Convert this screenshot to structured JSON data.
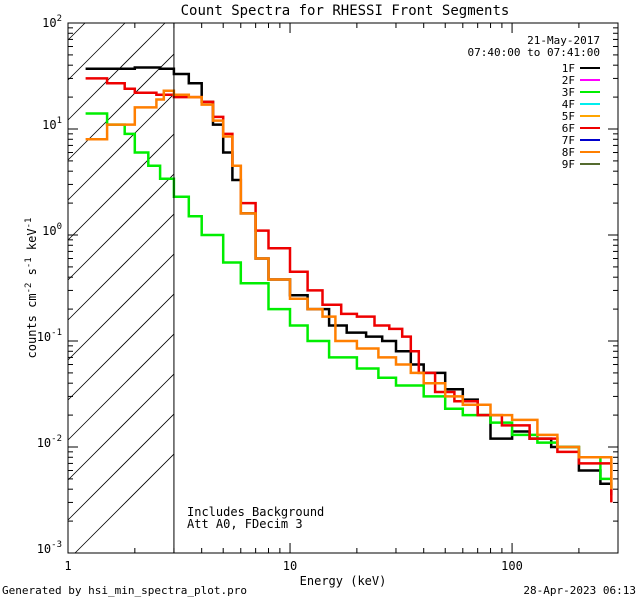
{
  "chart_data": {
    "type": "line",
    "title": "Count Spectra for RHESSI Front Segments",
    "xlabel": "Energy (keV)",
    "ylabel_parts": {
      "a": "counts cm",
      "exp1": "-2",
      "b": " s",
      "exp2": "-1",
      "c": " keV",
      "exp3": "-1"
    },
    "x_scale": "log",
    "y_scale": "log",
    "xlim": [
      1,
      300
    ],
    "ylim": [
      0.001,
      100
    ],
    "x_tick_labels": [
      "1",
      "10",
      "100"
    ],
    "y_tick_labels": [
      {
        "base": "10",
        "exp": "-3"
      },
      {
        "base": "10",
        "exp": "-2"
      },
      {
        "base": "10",
        "exp": "-1"
      },
      {
        "base": "10",
        "exp": "0"
      },
      {
        "base": "10",
        "exp": "1"
      },
      {
        "base": "10",
        "exp": "2"
      }
    ],
    "date": "21-May-2017",
    "time_range": "07:40:00 to 07:41:00",
    "annotations": [
      "Includes Background",
      "Att A0, FDecim 3"
    ],
    "excluded_region_xmax_kev": 3,
    "legend": [
      {
        "name": "1F",
        "color": "#000000"
      },
      {
        "name": "2F",
        "color": "#ff00ff"
      },
      {
        "name": "3F",
        "color": "#00ee00"
      },
      {
        "name": "4F",
        "color": "#00eeee"
      },
      {
        "name": "5F",
        "color": "#ffa500"
      },
      {
        "name": "6F",
        "color": "#ee0000"
      },
      {
        "name": "7F",
        "color": "#0000cc"
      },
      {
        "name": "8F",
        "color": "#ff7f00"
      },
      {
        "name": "9F",
        "color": "#556b2f"
      }
    ],
    "series": [
      {
        "name": "1F",
        "color": "#000000",
        "x": [
          1.2,
          2.0,
          2.6,
          3.0,
          3.5,
          4.0,
          4.5,
          5.0,
          5.5,
          6.0,
          7.0,
          8.0,
          10.0,
          12.0,
          15.0,
          18.0,
          22.0,
          26.0,
          30.0,
          35.0,
          40.0,
          50.0,
          60.0,
          70.0,
          80.0,
          100.0,
          120.0,
          150.0,
          200.0,
          250.0,
          280.0
        ],
        "y": [
          37,
          38,
          37,
          33,
          27,
          18,
          11,
          6,
          3.3,
          1.6,
          0.6,
          0.38,
          0.27,
          0.2,
          0.14,
          0.12,
          0.11,
          0.1,
          0.08,
          0.06,
          0.05,
          0.035,
          0.028,
          0.02,
          0.012,
          0.014,
          0.012,
          0.01,
          0.006,
          0.0045,
          0.0035
        ]
      },
      {
        "name": "3F",
        "color": "#00ee00",
        "x": [
          1.2,
          1.5,
          1.8,
          2.0,
          2.3,
          2.6,
          3.0,
          3.5,
          4.0,
          5.0,
          6.0,
          8.0,
          10.0,
          12.0,
          15.0,
          20.0,
          25.0,
          30.0,
          40.0,
          50.0,
          60.0,
          80.0,
          100.0,
          130.0,
          160.0,
          200.0,
          250.0,
          280.0
        ],
        "y": [
          14,
          11,
          9,
          6,
          4.5,
          3.4,
          2.3,
          1.5,
          1.0,
          0.55,
          0.35,
          0.2,
          0.14,
          0.1,
          0.07,
          0.055,
          0.045,
          0.038,
          0.03,
          0.023,
          0.02,
          0.017,
          0.013,
          0.011,
          0.01,
          0.008,
          0.005,
          0.004
        ]
      },
      {
        "name": "6F",
        "color": "#ee0000",
        "x": [
          1.2,
          1.5,
          1.8,
          2.0,
          2.5,
          3.0,
          3.5,
          4.0,
          4.5,
          5.0,
          5.5,
          6.0,
          7.0,
          8.0,
          10.0,
          12.0,
          14.0,
          17.0,
          20.0,
          24.0,
          28.0,
          32.0,
          35.0,
          38.0,
          45.0,
          55.0,
          70.0,
          90.0,
          120.0,
          160.0,
          200.0,
          280.0
        ],
        "y": [
          30,
          27,
          24,
          22,
          21,
          20,
          20,
          18,
          13,
          9,
          4.5,
          2.0,
          1.1,
          0.75,
          0.45,
          0.3,
          0.22,
          0.18,
          0.17,
          0.14,
          0.13,
          0.11,
          0.08,
          0.05,
          0.033,
          0.027,
          0.02,
          0.016,
          0.012,
          0.009,
          0.007,
          0.003
        ]
      },
      {
        "name": "8F",
        "color": "#ff7f00",
        "x": [
          1.2,
          1.5,
          1.8,
          2.0,
          2.5,
          2.7,
          3.0,
          3.5,
          4.0,
          4.5,
          5.0,
          5.5,
          6.0,
          7.0,
          8.0,
          10.0,
          12.0,
          14.0,
          16.0,
          20.0,
          25.0,
          30.0,
          35.0,
          40.0,
          50.0,
          60.0,
          80.0,
          100.0,
          130.0,
          160.0,
          200.0,
          280.0
        ],
        "y": [
          8,
          11,
          11,
          16,
          19,
          23,
          21,
          20,
          17,
          12,
          8.5,
          4.5,
          1.6,
          0.6,
          0.38,
          0.25,
          0.2,
          0.17,
          0.1,
          0.085,
          0.07,
          0.06,
          0.05,
          0.04,
          0.03,
          0.025,
          0.02,
          0.018,
          0.013,
          0.01,
          0.008,
          0.004
        ]
      }
    ]
  },
  "footer": {
    "generated_by": "Generated by hsi_min_spectra_plot.pro",
    "timestamp": "28-Apr-2023 06:13"
  }
}
